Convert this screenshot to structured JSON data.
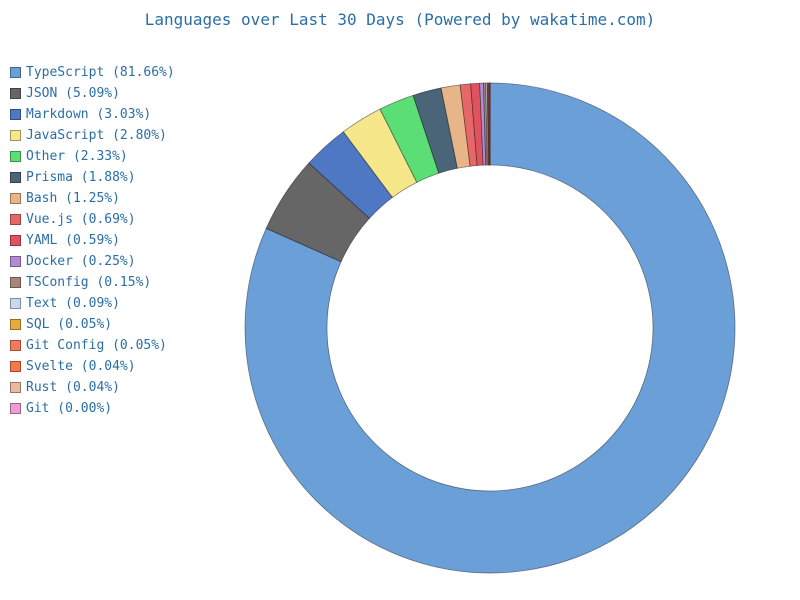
{
  "chart_data": {
    "type": "pie",
    "title": "Languages over Last 30 Days (Powered by wakatime.com)",
    "legend_position": "left",
    "slices": [
      {
        "label": "TypeScript (81.66%)",
        "value": 81.66,
        "color": "#6b9fd8"
      },
      {
        "label": "JSON (5.09%)",
        "value": 5.09,
        "color": "#666666"
      },
      {
        "label": "Markdown (3.03%)",
        "value": 3.03,
        "color": "#4e78c4"
      },
      {
        "label": "JavaScript (2.80%)",
        "value": 2.8,
        "color": "#f5e78a"
      },
      {
        "label": "Other (2.33%)",
        "value": 2.33,
        "color": "#5bde76"
      },
      {
        "label": "Prisma (1.88%)",
        "value": 1.88,
        "color": "#4a6478"
      },
      {
        "label": "Bash (1.25%)",
        "value": 1.25,
        "color": "#e8b589"
      },
      {
        "label": "Vue.js (0.69%)",
        "value": 0.69,
        "color": "#e56767"
      },
      {
        "label": "YAML (0.59%)",
        "value": 0.59,
        "color": "#e0525e"
      },
      {
        "label": "Docker (0.25%)",
        "value": 0.25,
        "color": "#b489d6"
      },
      {
        "label": "TSConfig (0.15%)",
        "value": 0.15,
        "color": "#a8857a"
      },
      {
        "label": "Text (0.09%)",
        "value": 0.09,
        "color": "#c6d9f2"
      },
      {
        "label": "SQL (0.05%)",
        "value": 0.05,
        "color": "#e8a93d"
      },
      {
        "label": "Git Config (0.05%)",
        "value": 0.05,
        "color": "#f27b5c"
      },
      {
        "label": "Svelte (0.04%)",
        "value": 0.04,
        "color": "#fa7647"
      },
      {
        "label": "Rust (0.04%)",
        "value": 0.04,
        "color": "#e9b9a0"
      },
      {
        "label": "Git (0.00%)",
        "value": 0.0,
        "color": "#f09ad6"
      }
    ]
  }
}
